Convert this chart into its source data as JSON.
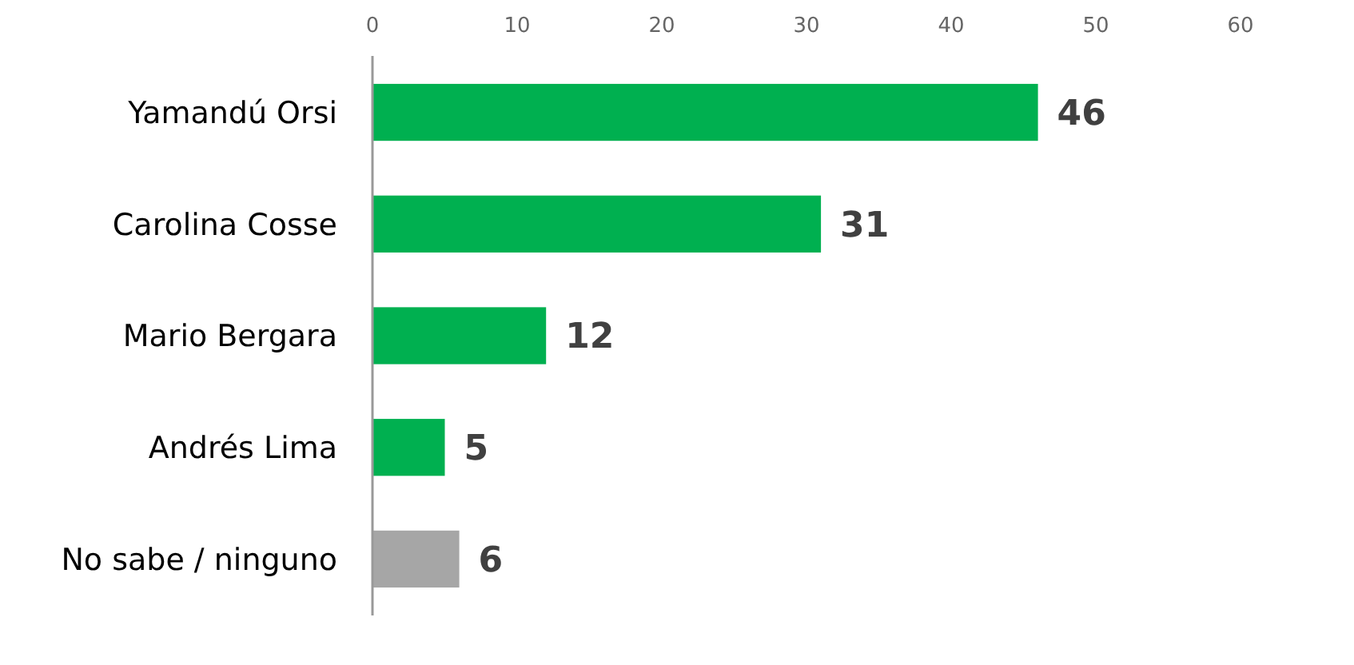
{
  "chart_data": {
    "type": "bar",
    "orientation": "horizontal",
    "categories": [
      "Yamandú Orsi",
      "Carolina Cosse",
      "Mario Bergara",
      "Andrés Lima",
      "No sabe / ninguno"
    ],
    "values": [
      46,
      31,
      12,
      5,
      6
    ],
    "colors": [
      "#00b050",
      "#00b050",
      "#00b050",
      "#00b050",
      "#a6a6a6"
    ],
    "xlim": [
      0,
      60
    ],
    "xticks": [
      0,
      10,
      20,
      30,
      40,
      50,
      60
    ],
    "data_labels": true
  }
}
